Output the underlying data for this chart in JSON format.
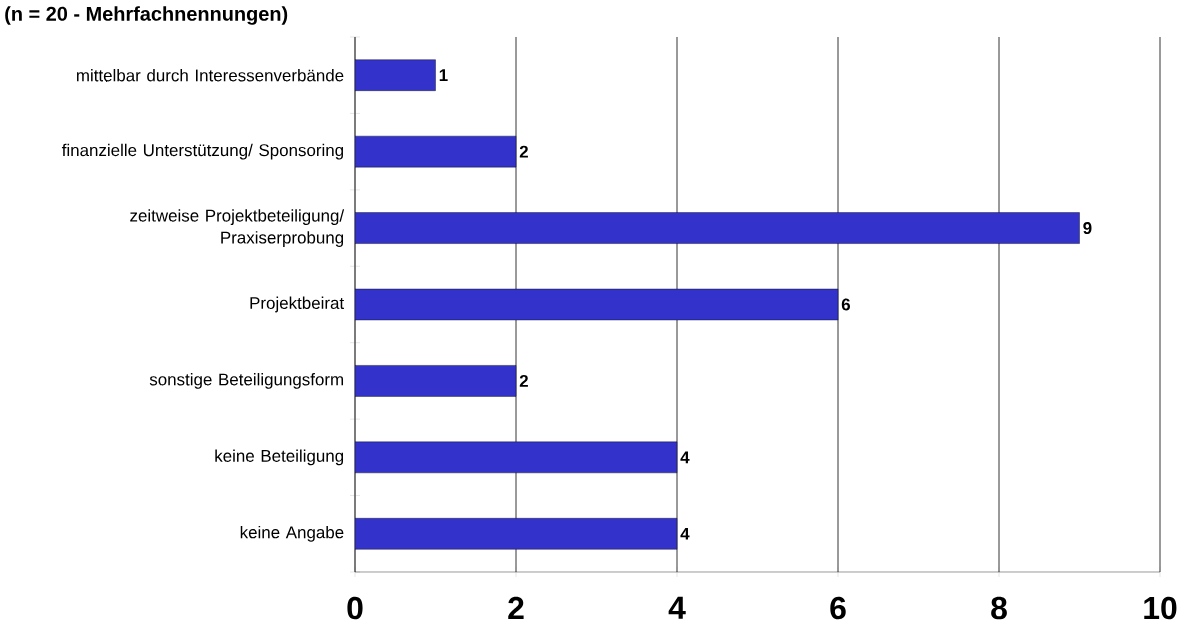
{
  "chart_data": {
    "type": "bar",
    "orientation": "horizontal",
    "title": "(n = 20 - Mehrfachnennungen)",
    "categories": [
      "mittelbar durch Interessenverbände",
      "finanzielle Unterstützung/ Sponsoring",
      "zeitweise Projektbeteiligung/ Praxiserprobung",
      "Projektbeirat",
      "sonstige Beteiligungsform",
      "keine Beteiligung",
      "keine Angabe"
    ],
    "values": [
      1,
      2,
      9,
      6,
      2,
      4,
      4
    ],
    "color": "#3333cc",
    "xlim": [
      0,
      10
    ],
    "xticks": [
      0,
      2,
      4,
      6,
      8,
      10
    ],
    "grid": "x",
    "data_labels": true
  }
}
